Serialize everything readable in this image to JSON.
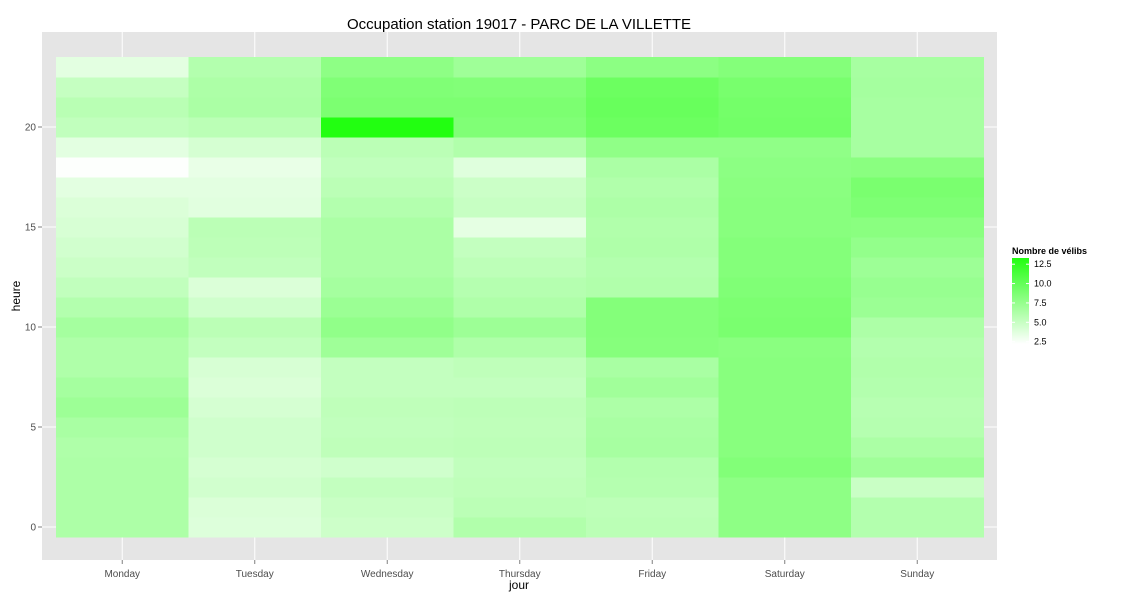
{
  "chart_data": {
    "type": "heatmap",
    "title": "Occupation station 19017 - PARC DE LA VILLETTE",
    "xlabel": "jour",
    "ylabel": "heure",
    "x_categories": [
      "Monday",
      "Tuesday",
      "Wednesday",
      "Thursday",
      "Friday",
      "Saturday",
      "Sunday"
    ],
    "y_ticks": [
      0,
      5,
      10,
      15,
      20
    ],
    "y_range": [
      0,
      23
    ],
    "legend": {
      "title": "Nombre de vélibs",
      "ticks": [
        2.5,
        5.0,
        7.5,
        10.0,
        12.5
      ],
      "tick_labels": [
        "2.5",
        "5.0",
        "7.5",
        "10.0",
        "12.5"
      ],
      "range": [
        2.2,
        13.3
      ],
      "color_low": "#ffffff",
      "color_high": "#22ff11",
      "placement": "right"
    },
    "grid": true,
    "values_by_hour": [
      [
        6.3,
        3.9,
        4.7,
        6.1,
        5.6,
        7.9,
        6.0
      ],
      [
        6.3,
        4.0,
        4.9,
        5.6,
        5.5,
        7.9,
        6.0
      ],
      [
        6.3,
        4.5,
        5.2,
        5.4,
        5.9,
        7.9,
        4.9
      ],
      [
        6.3,
        4.3,
        4.6,
        5.3,
        6.0,
        8.5,
        7.0
      ],
      [
        6.2,
        4.6,
        5.4,
        5.5,
        6.6,
        8.2,
        6.4
      ],
      [
        6.5,
        4.6,
        5.3,
        5.4,
        6.5,
        8.2,
        5.9
      ],
      [
        7.1,
        4.3,
        5.4,
        5.5,
        6.3,
        8.2,
        5.8
      ],
      [
        6.7,
        4.0,
        5.2,
        5.2,
        6.9,
        8.2,
        6.0
      ],
      [
        6.2,
        4.2,
        5.2,
        5.4,
        6.5,
        8.2,
        6.1
      ],
      [
        6.2,
        5.2,
        7.0,
        6.2,
        8.3,
        8.1,
        6.0
      ],
      [
        6.7,
        5.6,
        7.7,
        7.1,
        8.4,
        8.9,
        6.3
      ],
      [
        6.0,
        4.6,
        7.2,
        6.2,
        8.4,
        8.8,
        7.2
      ],
      [
        5.3,
        4.0,
        6.7,
        5.9,
        6.1,
        8.6,
        7.4
      ],
      [
        4.8,
        5.3,
        6.4,
        5.5,
        6.0,
        8.4,
        7.1
      ],
      [
        4.5,
        5.5,
        6.4,
        5.2,
        6.2,
        8.4,
        7.6
      ],
      [
        4.2,
        5.6,
        6.4,
        3.5,
        6.1,
        8.2,
        8.1
      ],
      [
        4.0,
        3.7,
        6.0,
        5.0,
        6.3,
        8.2,
        8.7
      ],
      [
        3.6,
        3.6,
        5.6,
        4.8,
        6.1,
        8.1,
        8.9
      ],
      [
        2.3,
        3.3,
        5.3,
        3.8,
        6.4,
        8.0,
        8.1
      ],
      [
        3.6,
        4.3,
        5.6,
        6.1,
        7.8,
        7.8,
        6.6
      ],
      [
        5.3,
        5.6,
        13.3,
        8.6,
        9.6,
        9.3,
        6.6
      ],
      [
        5.7,
        6.4,
        8.8,
        8.8,
        9.8,
        9.2,
        6.6
      ],
      [
        5.1,
        6.3,
        8.6,
        8.5,
        9.6,
        9.0,
        6.7
      ],
      [
        3.6,
        6.0,
        7.9,
        7.0,
        8.0,
        8.4,
        6.6
      ]
    ]
  }
}
